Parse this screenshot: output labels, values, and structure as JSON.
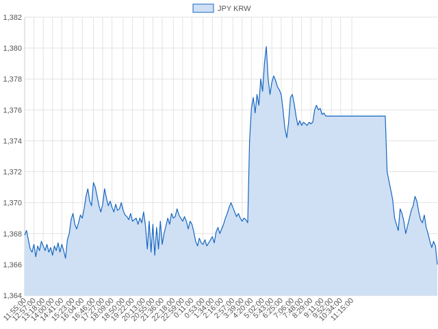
{
  "chart_data": {
    "type": "area",
    "legend": {
      "position": "top-center",
      "entries": [
        "JPY KRW"
      ]
    },
    "series": [
      {
        "name": "JPY KRW",
        "color_line": "#1565c0",
        "color_fill": "#cfe0f4",
        "points": [
          [
            0,
            1367.9
          ],
          [
            1,
            1368.2
          ],
          [
            2,
            1367.6
          ],
          [
            3,
            1367.0
          ],
          [
            4,
            1366.8
          ],
          [
            5,
            1367.3
          ],
          [
            6,
            1366.5
          ],
          [
            7,
            1367.2
          ],
          [
            8,
            1366.9
          ],
          [
            9,
            1367.5
          ],
          [
            10,
            1367.2
          ],
          [
            11,
            1366.9
          ],
          [
            12,
            1367.3
          ],
          [
            13,
            1366.8
          ],
          [
            14,
            1367.1
          ],
          [
            15,
            1366.6
          ],
          [
            16,
            1367.2
          ],
          [
            17,
            1366.9
          ],
          [
            18,
            1367.4
          ],
          [
            19,
            1366.8
          ],
          [
            20,
            1367.3
          ],
          [
            21,
            1366.9
          ],
          [
            22,
            1366.4
          ],
          [
            23,
            1367.6
          ],
          [
            24,
            1368.0
          ],
          [
            25,
            1368.9
          ],
          [
            26,
            1369.3
          ],
          [
            27,
            1368.6
          ],
          [
            28,
            1368.3
          ],
          [
            29,
            1368.7
          ],
          [
            30,
            1369.2
          ],
          [
            31,
            1369.0
          ],
          [
            32,
            1369.6
          ],
          [
            33,
            1370.4
          ],
          [
            34,
            1370.9
          ],
          [
            35,
            1370.1
          ],
          [
            36,
            1369.8
          ],
          [
            37,
            1371.3
          ],
          [
            38,
            1371.0
          ],
          [
            39,
            1370.4
          ],
          [
            40,
            1369.8
          ],
          [
            41,
            1369.4
          ],
          [
            42,
            1369.9
          ],
          [
            43,
            1370.9
          ],
          [
            44,
            1370.3
          ],
          [
            45,
            1369.8
          ],
          [
            46,
            1370.1
          ],
          [
            47,
            1369.7
          ],
          [
            48,
            1369.4
          ],
          [
            49,
            1369.9
          ],
          [
            50,
            1369.5
          ],
          [
            51,
            1369.6
          ],
          [
            52,
            1370.0
          ],
          [
            53,
            1369.5
          ],
          [
            54,
            1369.2
          ],
          [
            55,
            1369.1
          ],
          [
            56,
            1368.9
          ],
          [
            57,
            1369.3
          ],
          [
            58,
            1368.8
          ],
          [
            59,
            1368.9
          ],
          [
            60,
            1369.0
          ],
          [
            61,
            1368.6
          ],
          [
            62,
            1369.0
          ],
          [
            63,
            1368.7
          ],
          [
            64,
            1369.4
          ],
          [
            65,
            1368.5
          ],
          [
            66,
            1367.0
          ],
          [
            67,
            1368.8
          ],
          [
            68,
            1366.8
          ],
          [
            69,
            1368.6
          ],
          [
            70,
            1366.6
          ],
          [
            71,
            1368.4
          ],
          [
            72,
            1367.0
          ],
          [
            73,
            1368.8
          ],
          [
            74,
            1367.3
          ],
          [
            75,
            1368.0
          ],
          [
            76,
            1368.5
          ],
          [
            77,
            1369.0
          ],
          [
            78,
            1368.6
          ],
          [
            79,
            1369.3
          ],
          [
            80,
            1369.0
          ],
          [
            81,
            1369.1
          ],
          [
            82,
            1369.6
          ],
          [
            83,
            1369.2
          ],
          [
            84,
            1369.0
          ],
          [
            85,
            1368.8
          ],
          [
            86,
            1369.1
          ],
          [
            87,
            1368.8
          ],
          [
            88,
            1368.3
          ],
          [
            89,
            1368.8
          ],
          [
            90,
            1368.6
          ],
          [
            91,
            1368.1
          ],
          [
            92,
            1367.5
          ],
          [
            93,
            1367.2
          ],
          [
            94,
            1367.7
          ],
          [
            95,
            1367.4
          ],
          [
            96,
            1367.3
          ],
          [
            97,
            1367.6
          ],
          [
            98,
            1367.2
          ],
          [
            99,
            1367.4
          ],
          [
            100,
            1367.6
          ],
          [
            101,
            1367.8
          ],
          [
            102,
            1367.4
          ],
          [
            103,
            1368.1
          ],
          [
            104,
            1368.4
          ],
          [
            105,
            1368.0
          ],
          [
            106,
            1368.3
          ],
          [
            107,
            1368.6
          ],
          [
            108,
            1369.0
          ],
          [
            109,
            1369.3
          ],
          [
            110,
            1369.7
          ],
          [
            111,
            1370.0
          ],
          [
            112,
            1369.7
          ],
          [
            113,
            1369.4
          ],
          [
            114,
            1369.1
          ],
          [
            115,
            1369.3
          ],
          [
            116,
            1369.0
          ],
          [
            117,
            1368.8
          ],
          [
            118,
            1369.0
          ],
          [
            119,
            1368.9
          ],
          [
            120,
            1368.7
          ],
          [
            121,
            1374.0
          ],
          [
            122,
            1376.1
          ],
          [
            123,
            1376.8
          ],
          [
            124,
            1375.8
          ],
          [
            125,
            1377.0
          ],
          [
            126,
            1376.3
          ],
          [
            127,
            1378.0
          ],
          [
            128,
            1377.2
          ],
          [
            129,
            1379.0
          ],
          [
            130,
            1380.1
          ],
          [
            131,
            1378.0
          ],
          [
            132,
            1377.0
          ],
          [
            133,
            1377.8
          ],
          [
            134,
            1378.2
          ],
          [
            135,
            1377.9
          ],
          [
            136,
            1377.5
          ],
          [
            137,
            1377.3
          ],
          [
            138,
            1377.0
          ],
          [
            139,
            1376.0
          ],
          [
            140,
            1374.8
          ],
          [
            141,
            1374.2
          ],
          [
            142,
            1375.2
          ],
          [
            143,
            1376.8
          ],
          [
            144,
            1377.0
          ],
          [
            145,
            1376.4
          ],
          [
            146,
            1375.6
          ],
          [
            147,
            1375.0
          ],
          [
            148,
            1375.3
          ],
          [
            149,
            1375.0
          ],
          [
            150,
            1375.2
          ],
          [
            151,
            1375.1
          ],
          [
            152,
            1375.0
          ],
          [
            153,
            1375.2
          ],
          [
            154,
            1375.1
          ],
          [
            155,
            1375.2
          ],
          [
            156,
            1376.0
          ],
          [
            157,
            1376.3
          ],
          [
            158,
            1376.0
          ],
          [
            159,
            1376.1
          ],
          [
            160,
            1375.7
          ],
          [
            161,
            1375.8
          ],
          [
            162,
            1375.6
          ],
          [
            163,
            1375.6
          ],
          [
            164,
            1375.6
          ],
          [
            165,
            1375.6
          ],
          [
            166,
            1375.6
          ],
          [
            167,
            1375.6
          ],
          [
            168,
            1375.6
          ],
          [
            169,
            1375.6
          ],
          [
            170,
            1375.6
          ],
          [
            171,
            1375.6
          ],
          [
            172,
            1375.6
          ],
          [
            173,
            1375.6
          ],
          [
            174,
            1375.6
          ],
          [
            175,
            1375.6
          ],
          [
            176,
            1375.6
          ],
          [
            177,
            1375.6
          ],
          [
            178,
            1375.6
          ],
          [
            179,
            1375.6
          ],
          [
            180,
            1375.6
          ],
          [
            181,
            1375.6
          ],
          [
            182,
            1375.6
          ],
          [
            183,
            1375.6
          ],
          [
            184,
            1375.6
          ],
          [
            185,
            1375.6
          ],
          [
            186,
            1375.6
          ],
          [
            187,
            1375.6
          ],
          [
            188,
            1375.6
          ],
          [
            189,
            1375.6
          ],
          [
            190,
            1375.6
          ],
          [
            191,
            1375.6
          ],
          [
            192,
            1375.6
          ],
          [
            193,
            1375.6
          ],
          [
            194,
            1375.6
          ],
          [
            195,
            1372.0
          ],
          [
            196,
            1371.4
          ],
          [
            197,
            1370.8
          ],
          [
            198,
            1370.2
          ],
          [
            199,
            1369.0
          ],
          [
            200,
            1368.6
          ],
          [
            201,
            1368.2
          ],
          [
            202,
            1369.6
          ],
          [
            203,
            1369.3
          ],
          [
            204,
            1368.8
          ],
          [
            205,
            1368.0
          ],
          [
            206,
            1368.5
          ],
          [
            207,
            1369.0
          ],
          [
            208,
            1369.5
          ],
          [
            209,
            1369.8
          ],
          [
            210,
            1370.4
          ],
          [
            211,
            1370.1
          ],
          [
            212,
            1369.4
          ],
          [
            213,
            1368.9
          ],
          [
            214,
            1368.7
          ],
          [
            215,
            1369.2
          ],
          [
            216,
            1368.4
          ],
          [
            217,
            1368.0
          ],
          [
            218,
            1367.5
          ],
          [
            219,
            1367.1
          ],
          [
            220,
            1367.5
          ],
          [
            221,
            1367.2
          ],
          [
            222,
            1366.0
          ]
        ]
      }
    ],
    "xticks": [
      {
        "at": 0,
        "label": "11:55:00"
      },
      {
        "at": 5,
        "label": "12:57:00"
      },
      {
        "at": 10,
        "label": "13:18:00"
      },
      {
        "at": 15,
        "label": "14:00:00"
      },
      {
        "at": 20,
        "label": "14:41:00"
      },
      {
        "at": 26,
        "label": "15:23:00"
      },
      {
        "at": 31,
        "label": "16:04:00"
      },
      {
        "at": 37,
        "label": "16:46:00"
      },
      {
        "at": 42,
        "label": "17:27:00"
      },
      {
        "at": 47,
        "label": "18:09:00"
      },
      {
        "at": 53,
        "label": "18:50:00"
      },
      {
        "at": 58,
        "label": "19:22:00"
      },
      {
        "at": 64,
        "label": "20:13:00"
      },
      {
        "at": 69,
        "label": "20:55:00"
      },
      {
        "at": 74,
        "label": "21:36:00"
      },
      {
        "at": 80,
        "label": "22:18:00"
      },
      {
        "at": 85,
        "label": "22:59:00"
      },
      {
        "at": 90,
        "label": "0:11:00"
      },
      {
        "at": 96,
        "label": "0:53:00"
      },
      {
        "at": 101,
        "label": "1:34:00"
      },
      {
        "at": 106,
        "label": "2:16:00"
      },
      {
        "at": 112,
        "label": "2:57:00"
      },
      {
        "at": 117,
        "label": "3:39:00"
      },
      {
        "at": 122,
        "label": "4:20:00"
      },
      {
        "at": 128,
        "label": "5:02:00"
      },
      {
        "at": 133,
        "label": "5:43:00"
      },
      {
        "at": 138,
        "label": "6:25:00"
      },
      {
        "at": 144,
        "label": "7:06:00"
      },
      {
        "at": 149,
        "label": "7:48:00"
      },
      {
        "at": 154,
        "label": "8:29:00"
      },
      {
        "at": 160,
        "label": "9:11:00"
      },
      {
        "at": 165,
        "label": "9:52:00"
      },
      {
        "at": 170,
        "label": "10:34:00"
      },
      {
        "at": 176,
        "label": "11:15:00"
      }
    ],
    "yticks": [
      1364,
      1366,
      1368,
      1370,
      1372,
      1374,
      1376,
      1378,
      1380,
      1382
    ],
    "ytick_labels": [
      "1,364",
      "1,366",
      "1,368",
      "1,370",
      "1,372",
      "1,374",
      "1,376",
      "1,378",
      "1,380",
      "1,382"
    ],
    "ylim": [
      1364,
      1382
    ],
    "xlim": [
      0,
      222
    ],
    "grid": true,
    "xlabel": "",
    "ylabel": ""
  }
}
